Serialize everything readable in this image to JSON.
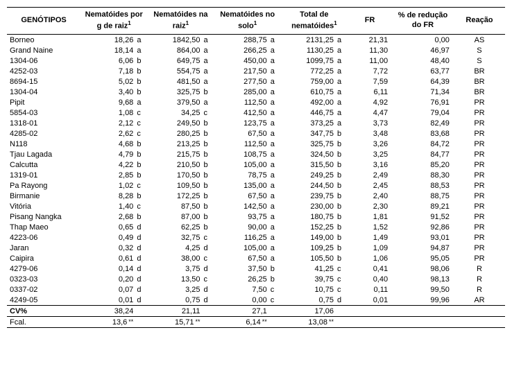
{
  "headers": {
    "genotipos": "GENÓTIPOS",
    "nema_raiz_g": "Nematóides por g de raiz",
    "nema_raiz": "Nematóides na raiz",
    "nema_solo": "Nematóides no solo",
    "total": "Total de nematóides",
    "fr": "FR",
    "pct": "% de redução do FR",
    "reacao": "Reação",
    "sup1": "1"
  },
  "rows": [
    {
      "g": "Borneo",
      "c1": "18,26",
      "l1": "a",
      "c2": "1842,50",
      "l2": "a",
      "c3": "288,75",
      "l3": "a",
      "c4": "2131,25",
      "l4": "a",
      "fr": "21,31",
      "pct": "0,00",
      "r": "AS"
    },
    {
      "g": "Grand Naine",
      "c1": "18,14",
      "l1": "a",
      "c2": "864,00",
      "l2": "a",
      "c3": "266,25",
      "l3": "a",
      "c4": "1130,25",
      "l4": "a",
      "fr": "11,30",
      "pct": "46,97",
      "r": "S"
    },
    {
      "g": "1304-06",
      "c1": "6,06",
      "l1": "b",
      "c2": "649,75",
      "l2": "a",
      "c3": "450,00",
      "l3": "a",
      "c4": "1099,75",
      "l4": "a",
      "fr": "11,00",
      "pct": "48,40",
      "r": "S"
    },
    {
      "g": "4252-03",
      "c1": "7,18",
      "l1": "b",
      "c2": "554,75",
      "l2": "a",
      "c3": "217,50",
      "l3": "a",
      "c4": "772,25",
      "l4": "a",
      "fr": "7,72",
      "pct": "63,77",
      "r": "BR"
    },
    {
      "g": "8694-15",
      "c1": "5,02",
      "l1": "b",
      "c2": "481,50",
      "l2": "a",
      "c3": "277,50",
      "l3": "a",
      "c4": "759,00",
      "l4": "a",
      "fr": "7,59",
      "pct": "64,39",
      "r": "BR"
    },
    {
      "g": "1304-04",
      "c1": "3,40",
      "l1": "b",
      "c2": "325,75",
      "l2": "b",
      "c3": "285,00",
      "l3": "a",
      "c4": "610,75",
      "l4": "a",
      "fr": "6,11",
      "pct": "71,34",
      "r": "BR"
    },
    {
      "g": "Pipit",
      "c1": "9,68",
      "l1": "a",
      "c2": "379,50",
      "l2": "a",
      "c3": "112,50",
      "l3": "a",
      "c4": "492,00",
      "l4": "a",
      "fr": "4,92",
      "pct": "76,91",
      "r": "PR"
    },
    {
      "g": "5854-03",
      "c1": "1,08",
      "l1": "c",
      "c2": "34,25",
      "l2": "c",
      "c3": "412,50",
      "l3": "a",
      "c4": "446,75",
      "l4": "a",
      "fr": "4,47",
      "pct": "79,04",
      "r": "PR"
    },
    {
      "g": "1318-01",
      "c1": "2,12",
      "l1": "c",
      "c2": "249,50",
      "l2": "b",
      "c3": "123,75",
      "l3": "a",
      "c4": "373,25",
      "l4": "a",
      "fr": "3,73",
      "pct": "82,49",
      "r": "PR"
    },
    {
      "g": "4285-02",
      "c1": "2,62",
      "l1": "c",
      "c2": "280,25",
      "l2": "b",
      "c3": "67,50",
      "l3": "a",
      "c4": "347,75",
      "l4": "b",
      "fr": "3,48",
      "pct": "83,68",
      "r": "PR"
    },
    {
      "g": "N118",
      "c1": "4,68",
      "l1": "b",
      "c2": "213,25",
      "l2": "b",
      "c3": "112,50",
      "l3": "a",
      "c4": "325,75",
      "l4": "b",
      "fr": "3,26",
      "pct": "84,72",
      "r": "PR"
    },
    {
      "g": "Tjau Lagada",
      "c1": "4,79",
      "l1": "b",
      "c2": "215,75",
      "l2": "b",
      "c3": "108,75",
      "l3": "a",
      "c4": "324,50",
      "l4": "b",
      "fr": "3,25",
      "pct": "84,77",
      "r": "PR"
    },
    {
      "g": "Calcutta",
      "c1": "4,22",
      "l1": "b",
      "c2": "210,50",
      "l2": "b",
      "c3": "105,00",
      "l3": "a",
      "c4": "315,50",
      "l4": "b",
      "fr": "3,16",
      "pct": "85,20",
      "r": "PR"
    },
    {
      "g": "1319-01",
      "c1": "2,85",
      "l1": "b",
      "c2": "170,50",
      "l2": "b",
      "c3": "78,75",
      "l3": "a",
      "c4": "249,25",
      "l4": "b",
      "fr": "2,49",
      "pct": "88,30",
      "r": "PR"
    },
    {
      "g": "Pa Rayong",
      "c1": "1,02",
      "l1": "c",
      "c2": "109,50",
      "l2": "b",
      "c3": "135,00",
      "l3": "a",
      "c4": "244,50",
      "l4": "b",
      "fr": "2,45",
      "pct": "88,53",
      "r": "PR"
    },
    {
      "g": "Birmanie",
      "c1": "8,28",
      "l1": "b",
      "c2": "172,25",
      "l2": "b",
      "c3": "67,50",
      "l3": "a",
      "c4": "239,75",
      "l4": "b",
      "fr": "2,40",
      "pct": "88,75",
      "r": "PR"
    },
    {
      "g": "Vitória",
      "c1": "1,40",
      "l1": "c",
      "c2": "87,50",
      "l2": "b",
      "c3": "142,50",
      "l3": "a",
      "c4": "230,00",
      "l4": "b",
      "fr": "2,30",
      "pct": "89,21",
      "r": "PR"
    },
    {
      "g": "Pisang Nangka",
      "c1": "2,68",
      "l1": "b",
      "c2": "87,00",
      "l2": "b",
      "c3": "93,75",
      "l3": "a",
      "c4": "180,75",
      "l4": "b",
      "fr": "1,81",
      "pct": "91,52",
      "r": "PR"
    },
    {
      "g": "Thap Maeo",
      "c1": "0,65",
      "l1": "d",
      "c2": "62,25",
      "l2": "b",
      "c3": "90,00",
      "l3": "a",
      "c4": "152,25",
      "l4": "b",
      "fr": "1,52",
      "pct": "92,86",
      "r": "PR"
    },
    {
      "g": "4223-06",
      "c1": "0,49",
      "l1": "d",
      "c2": "32,75",
      "l2": "c",
      "c3": "116,25",
      "l3": "a",
      "c4": "149,00",
      "l4": "b",
      "fr": "1,49",
      "pct": "93,01",
      "r": "PR"
    },
    {
      "g": "Jaran",
      "c1": "0,32",
      "l1": "d",
      "c2": "4,25",
      "l2": "d",
      "c3": "105,00",
      "l3": "a",
      "c4": "109,25",
      "l4": "b",
      "fr": "1,09",
      "pct": "94,87",
      "r": "PR"
    },
    {
      "g": "Caipira",
      "c1": "0,61",
      "l1": "d",
      "c2": "38,00",
      "l2": "c",
      "c3": "67,50",
      "l3": "a",
      "c4": "105,50",
      "l4": "b",
      "fr": "1,06",
      "pct": "95,05",
      "r": "PR"
    },
    {
      "g": "4279-06",
      "c1": "0,14",
      "l1": "d",
      "c2": "3,75",
      "l2": "d",
      "c3": "37,50",
      "l3": "b",
      "c4": "41,25",
      "l4": "c",
      "fr": "0,41",
      "pct": "98,06",
      "r": "R"
    },
    {
      "g": "0323-03",
      "c1": "0,20",
      "l1": "d",
      "c2": "13,50",
      "l2": "c",
      "c3": "26,25",
      "l3": "b",
      "c4": "39,75",
      "l4": "c",
      "fr": "0,40",
      "pct": "98,13",
      "r": "R"
    },
    {
      "g": "0337-02",
      "c1": "0,07",
      "l1": "d",
      "c2": "3,25",
      "l2": "d",
      "c3": "7,50",
      "l3": "c",
      "c4": "10,75",
      "l4": "c",
      "fr": "0,11",
      "pct": "99,50",
      "r": "R"
    },
    {
      "g": "4249-05",
      "c1": "0,01",
      "l1": "d",
      "c2": "0,75",
      "l2": "d",
      "c3": "0,00",
      "l3": "c",
      "c4": "0,75",
      "l4": "d",
      "fr": "0,01",
      "pct": "99,96",
      "r": "AR"
    }
  ],
  "cv_row": {
    "label": "CV%",
    "c1": "38,24",
    "c2": "21,11",
    "c3": "27,1",
    "c4": "17,06"
  },
  "fcal_row": {
    "label": "Fcal.",
    "c1": "13,6",
    "c2": "15,71",
    "c3": "6,14",
    "c4": "13,08",
    "star": "**"
  }
}
